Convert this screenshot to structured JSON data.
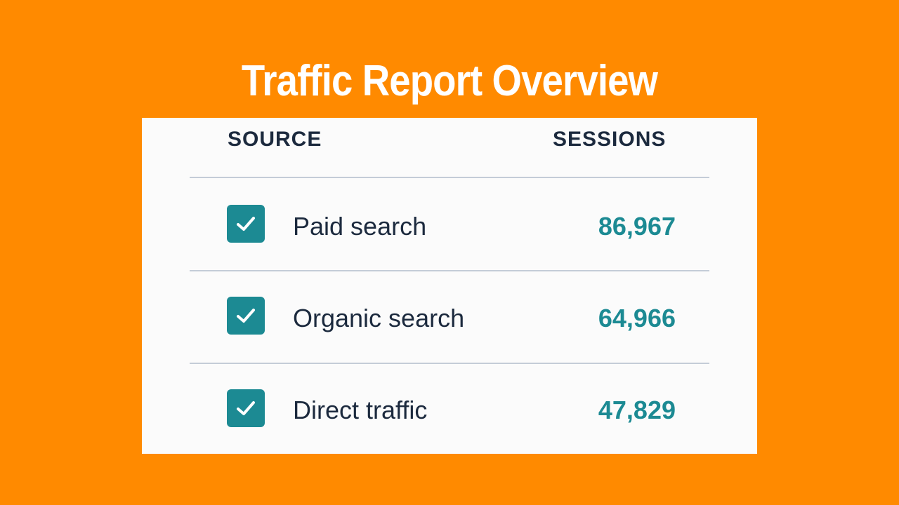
{
  "title": "Traffic Report Overview",
  "table": {
    "columns": {
      "source": "SOURCE",
      "sessions": "SESSIONS"
    },
    "rows": [
      {
        "checked": true,
        "source": "Paid search",
        "sessions": "86,967"
      },
      {
        "checked": true,
        "source": "Organic search",
        "sessions": "64,966"
      },
      {
        "checked": true,
        "source": "Direct traffic",
        "sessions": "47,829"
      }
    ]
  },
  "colors": {
    "background": "#FF8A00",
    "accent": "#1C8A93",
    "text": "#1C2A3E",
    "card": "#FBFBFB"
  },
  "icons": {
    "checkbox": "checkmark-icon"
  }
}
